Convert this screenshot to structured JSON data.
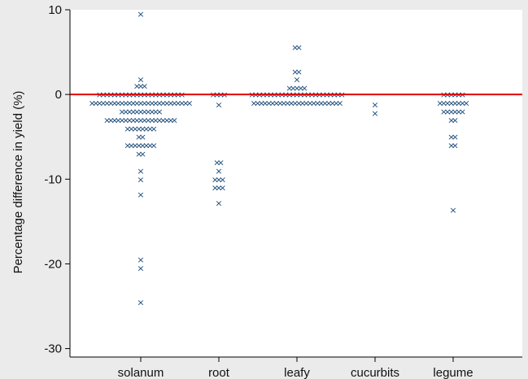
{
  "chart_data": {
    "type": "scatter",
    "title": "",
    "xlabel": "",
    "ylabel": "Percentage difference in yield (%)",
    "categories": [
      "solanum",
      "root",
      "leafy",
      "cucurbits",
      "legume"
    ],
    "ylim": [
      -31,
      10
    ],
    "yticks": [
      10,
      0,
      -10,
      -20,
      -30
    ],
    "grid": false,
    "marker": "x",
    "marker_color": "#1a4a78",
    "reference_line": {
      "y": 0,
      "color": "#e00000"
    },
    "points": {
      "solanum": [
        9.5,
        1.8,
        1.0,
        1.0,
        1.0,
        0,
        0,
        0,
        0,
        0,
        0,
        0,
        0,
        0,
        0,
        0,
        0,
        0,
        0,
        0,
        0,
        0,
        0,
        0,
        0,
        0,
        0,
        0,
        -1,
        -1,
        -1,
        -1,
        -1,
        -1,
        -1,
        -1,
        -1,
        -1,
        -1,
        -1,
        -1,
        -1,
        -1,
        -1,
        -1,
        -1,
        -1,
        -1,
        -1,
        -1,
        -1,
        -1,
        -1,
        -1,
        -1,
        -2,
        -2,
        -2,
        -2,
        -2,
        -2,
        -2,
        -2,
        -2,
        -2,
        -2,
        -3,
        -3,
        -3,
        -3,
        -3,
        -3,
        -3,
        -3,
        -3,
        -3,
        -3,
        -3,
        -3,
        -3,
        -3,
        -3,
        -3,
        -3,
        -3,
        -4,
        -4,
        -4,
        -4,
        -4,
        -4,
        -4,
        -4,
        -5,
        -5,
        -6,
        -6,
        -6,
        -6,
        -6,
        -6,
        -6,
        -6,
        -7,
        -7,
        -9,
        -10,
        -11.8,
        -19.5,
        -20.5,
        -24.5
      ],
      "root": [
        0,
        0,
        0,
        0,
        -1.2,
        -8,
        -8,
        -9,
        -10,
        -10,
        -10,
        -11,
        -11,
        -11,
        -12.8
      ],
      "leafy": [
        5.6,
        5.6,
        2.7,
        2.7,
        1.8,
        0.8,
        0.8,
        0.8,
        0.8,
        0.8,
        0,
        0,
        0,
        0,
        0,
        0,
        0,
        0,
        0,
        0,
        0,
        0,
        0,
        0,
        0,
        0,
        0,
        0,
        0,
        0,
        0,
        0,
        0,
        0,
        0,
        -1,
        -1,
        -1,
        -1,
        -1,
        -1,
        -1,
        -1,
        -1,
        -1,
        -1,
        -1,
        -1,
        -1,
        -1,
        -1,
        -1,
        -1,
        -1,
        -1,
        -1,
        -1,
        -1,
        -1
      ],
      "cucurbits": [
        -1.2,
        -2.2
      ],
      "legume": [
        0,
        0,
        0,
        0,
        0,
        0,
        -1,
        -1,
        -1,
        -1,
        -1,
        -1,
        -1,
        -1,
        -2,
        -2,
        -2,
        -2,
        -2,
        -2,
        -3,
        -3,
        -5,
        -5,
        -6,
        -6,
        -13.6
      ]
    }
  }
}
